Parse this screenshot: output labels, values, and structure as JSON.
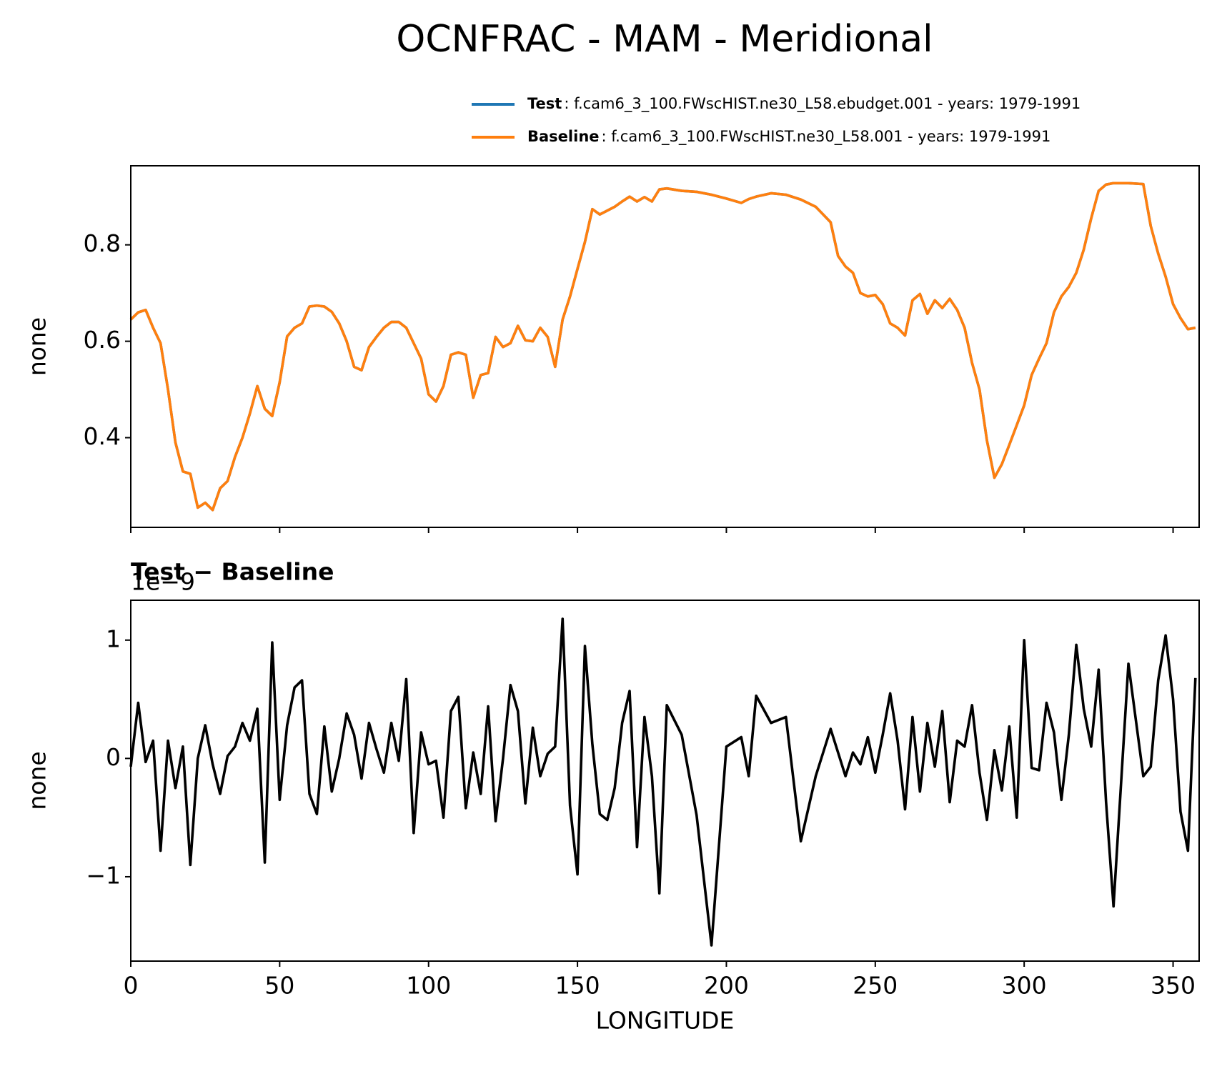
{
  "chart_data": [
    {
      "type": "line",
      "title": "OCNFRAC - MAM - Meridional",
      "ylabel": "none",
      "xlim": [
        0,
        358.75
      ],
      "xticks": [
        0,
        50,
        100,
        150,
        200,
        250,
        300,
        350
      ],
      "ylim": [
        0.214,
        0.964
      ],
      "yticks": [
        0.4,
        0.6,
        0.8
      ],
      "x": [
        0,
        2.5,
        5,
        7.5,
        10,
        12.5,
        15,
        17.5,
        20,
        22.5,
        25,
        27.5,
        30,
        32.5,
        35,
        37.5,
        40,
        42.5,
        45,
        47.5,
        50,
        52.5,
        55,
        57.5,
        60,
        62.5,
        65,
        67.5,
        70,
        72.5,
        75,
        77.5,
        80,
        82.5,
        85,
        87.5,
        90,
        92.5,
        95,
        97.5,
        100,
        102.5,
        105,
        107.5,
        110,
        112.5,
        115,
        117.5,
        120,
        122.5,
        125,
        127.5,
        130,
        132.5,
        135,
        137.5,
        140,
        142.5,
        145,
        147.5,
        150,
        152.5,
        155,
        157.5,
        160,
        162.5,
        165,
        167.5,
        170,
        172.5,
        175,
        177.5,
        180,
        185,
        190,
        195,
        200,
        205,
        207.5,
        210,
        215,
        220,
        225,
        230,
        235,
        237.5,
        240,
        242.5,
        245,
        247.5,
        250,
        252.5,
        255,
        257.5,
        260,
        262.5,
        265,
        267.5,
        270,
        272.5,
        275,
        277.5,
        280,
        282.5,
        285,
        287.5,
        290,
        292.5,
        295,
        297.5,
        300,
        302.5,
        305,
        307.5,
        310,
        312.5,
        315,
        317.5,
        320,
        322.5,
        325,
        327.5,
        330,
        335,
        340,
        342.5,
        345,
        347.5,
        350,
        352.5,
        355,
        357.5
      ],
      "series": [
        {
          "name": "Test",
          "description": ": f.cam6_3_100.FWscHIST.ne30_L58.ebudget.001 - years: 1979-1991",
          "color": "#1f77b4",
          "values": [
            0.645,
            0.66,
            0.665,
            0.628,
            0.596,
            0.5,
            0.39,
            0.33,
            0.325,
            0.255,
            0.265,
            0.25,
            0.295,
            0.31,
            0.36,
            0.4,
            0.45,
            0.507,
            0.46,
            0.445,
            0.515,
            0.61,
            0.628,
            0.637,
            0.672,
            0.674,
            0.672,
            0.661,
            0.637,
            0.6,
            0.547,
            0.54,
            0.588,
            0.609,
            0.628,
            0.64,
            0.64,
            0.628,
            0.596,
            0.564,
            0.49,
            0.475,
            0.507,
            0.572,
            0.577,
            0.572,
            0.483,
            0.53,
            0.534,
            0.609,
            0.588,
            0.596,
            0.632,
            0.602,
            0.6,
            0.628,
            0.609,
            0.547,
            0.645,
            0.693,
            0.75,
            0.806,
            0.874,
            0.863,
            0.871,
            0.879,
            0.89,
            0.9,
            0.89,
            0.899,
            0.89,
            0.915,
            0.917,
            0.912,
            0.91,
            0.904,
            0.896,
            0.887,
            0.895,
            0.9,
            0.907,
            0.904,
            0.894,
            0.879,
            0.847,
            0.777,
            0.755,
            0.742,
            0.7,
            0.693,
            0.696,
            0.677,
            0.637,
            0.628,
            0.612,
            0.685,
            0.698,
            0.657,
            0.685,
            0.669,
            0.688,
            0.665,
            0.628,
            0.555,
            0.5,
            0.394,
            0.317,
            0.345,
            0.385,
            0.426,
            0.467,
            0.53,
            0.564,
            0.596,
            0.66,
            0.693,
            0.713,
            0.742,
            0.79,
            0.855,
            0.912,
            0.925,
            0.928,
            0.928,
            0.926,
            0.839,
            0.782,
            0.734,
            0.677,
            0.648,
            0.625,
            0.628
          ]
        },
        {
          "name": "Baseline",
          "description": ": f.cam6_3_100.FWscHIST.ne30_L58.001 - years: 1979-1991",
          "color": "#ff7f0e",
          "values": [
            0.645,
            0.66,
            0.665,
            0.628,
            0.596,
            0.5,
            0.39,
            0.33,
            0.325,
            0.255,
            0.265,
            0.25,
            0.295,
            0.31,
            0.36,
            0.4,
            0.45,
            0.507,
            0.46,
            0.445,
            0.515,
            0.61,
            0.628,
            0.637,
            0.672,
            0.674,
            0.672,
            0.661,
            0.637,
            0.6,
            0.547,
            0.54,
            0.588,
            0.609,
            0.628,
            0.64,
            0.64,
            0.628,
            0.596,
            0.564,
            0.49,
            0.475,
            0.507,
            0.572,
            0.577,
            0.572,
            0.483,
            0.53,
            0.534,
            0.609,
            0.588,
            0.596,
            0.632,
            0.602,
            0.6,
            0.628,
            0.609,
            0.547,
            0.645,
            0.693,
            0.75,
            0.806,
            0.874,
            0.863,
            0.871,
            0.879,
            0.89,
            0.9,
            0.89,
            0.899,
            0.89,
            0.915,
            0.917,
            0.912,
            0.91,
            0.904,
            0.896,
            0.887,
            0.895,
            0.9,
            0.907,
            0.904,
            0.894,
            0.879,
            0.847,
            0.777,
            0.755,
            0.742,
            0.7,
            0.693,
            0.696,
            0.677,
            0.637,
            0.628,
            0.612,
            0.685,
            0.698,
            0.657,
            0.685,
            0.669,
            0.688,
            0.665,
            0.628,
            0.555,
            0.5,
            0.394,
            0.317,
            0.345,
            0.385,
            0.426,
            0.467,
            0.53,
            0.564,
            0.596,
            0.66,
            0.693,
            0.713,
            0.742,
            0.79,
            0.855,
            0.912,
            0.925,
            0.928,
            0.928,
            0.926,
            0.839,
            0.782,
            0.734,
            0.677,
            0.648,
            0.625,
            0.628
          ]
        }
      ]
    },
    {
      "type": "line",
      "title": "Test − Baseline",
      "offset_text": "1e−9",
      "ylabel": "none",
      "xlabel": "LONGITUDE",
      "xlim": [
        0,
        358.75
      ],
      "xticks": [
        0,
        50,
        100,
        150,
        200,
        250,
        300,
        350
      ],
      "ylim": [
        -1.713,
        1.337
      ],
      "yticks": [
        {
          "value": -1,
          "label": "−1"
        },
        0,
        1
      ],
      "x": [
        0,
        2.5,
        5,
        7.5,
        10,
        12.5,
        15,
        17.5,
        20,
        22.5,
        25,
        27.5,
        30,
        32.5,
        35,
        37.5,
        40,
        42.5,
        45,
        47.5,
        50,
        52.5,
        55,
        57.5,
        60,
        62.5,
        65,
        67.5,
        70,
        72.5,
        75,
        77.5,
        80,
        82.5,
        85,
        87.5,
        90,
        92.5,
        95,
        97.5,
        100,
        102.5,
        105,
        107.5,
        110,
        112.5,
        115,
        117.5,
        120,
        122.5,
        125,
        127.5,
        130,
        132.5,
        135,
        137.5,
        140,
        142.5,
        145,
        147.5,
        150,
        152.5,
        155,
        157.5,
        160,
        162.5,
        165,
        167.5,
        170,
        172.5,
        175,
        177.5,
        180,
        185,
        190,
        195,
        200,
        205,
        207.5,
        210,
        215,
        220,
        225,
        230,
        235,
        237.5,
        240,
        242.5,
        245,
        247.5,
        250,
        252.5,
        255,
        257.5,
        260,
        262.5,
        265,
        267.5,
        270,
        272.5,
        275,
        277.5,
        280,
        282.5,
        285,
        287.5,
        290,
        292.5,
        295,
        297.5,
        300,
        302.5,
        305,
        307.5,
        310,
        312.5,
        315,
        317.5,
        320,
        322.5,
        325,
        327.5,
        330,
        335,
        340,
        342.5,
        345,
        347.5,
        350,
        352.5,
        355,
        357.5
      ],
      "series": [
        {
          "color": "#000000",
          "values": [
            -0.07,
            0.47,
            -0.03,
            0.15,
            -0.78,
            0.15,
            -0.25,
            0.1,
            -0.9,
            0.0,
            0.28,
            -0.05,
            -0.3,
            0.02,
            0.1,
            0.3,
            0.15,
            0.42,
            -0.88,
            0.98,
            -0.35,
            0.28,
            0.6,
            0.66,
            -0.3,
            -0.47,
            0.27,
            -0.28,
            0.0,
            0.38,
            0.2,
            -0.17,
            0.3,
            0.08,
            -0.12,
            0.3,
            -0.02,
            0.67,
            -0.63,
            0.22,
            -0.05,
            -0.02,
            -0.5,
            0.4,
            0.52,
            -0.42,
            0.05,
            -0.3,
            0.44,
            -0.53,
            0.0,
            0.62,
            0.4,
            -0.38,
            0.26,
            -0.15,
            0.04,
            0.1,
            1.18,
            -0.4,
            -0.98,
            0.95,
            0.12,
            -0.47,
            -0.52,
            -0.25,
            0.3,
            0.57,
            -0.75,
            0.35,
            -0.15,
            -1.14,
            0.45,
            0.2,
            -0.48,
            -1.58,
            0.1,
            0.18,
            -0.15,
            0.53,
            0.3,
            0.35,
            -0.7,
            -0.15,
            0.25,
            0.05,
            -0.15,
            0.05,
            -0.05,
            0.18,
            -0.12,
            0.2,
            0.55,
            0.15,
            -0.43,
            0.35,
            -0.28,
            0.3,
            -0.07,
            0.4,
            -0.37,
            0.15,
            0.1,
            0.45,
            -0.12,
            -0.52,
            0.07,
            -0.27,
            0.27,
            -0.5,
            1.0,
            -0.08,
            -0.1,
            0.47,
            0.22,
            -0.35,
            0.2,
            0.96,
            0.42,
            0.1,
            0.75,
            -0.37,
            -1.25,
            0.8,
            -0.15,
            -0.07,
            0.66,
            1.04,
            0.5,
            -0.45,
            -0.78,
            0.68
          ]
        }
      ]
    }
  ]
}
